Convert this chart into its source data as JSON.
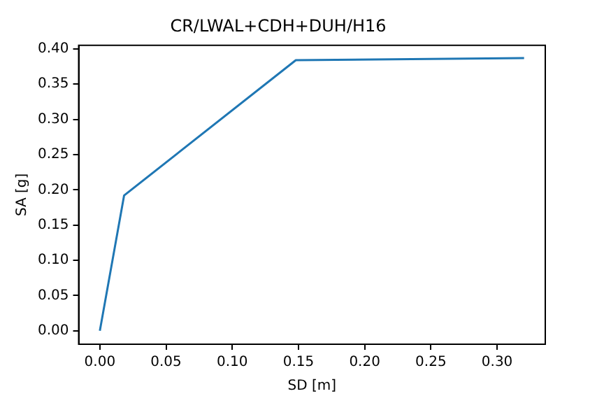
{
  "chart_data": {
    "type": "line",
    "title": "CR/LWAL+CDH+DUH/H16",
    "xlabel": "SD [m]",
    "ylabel": "SA [g]",
    "x": [
      0,
      0.0183,
      0.148,
      0.3204
    ],
    "series": [
      {
        "color": "#1f77b4",
        "values": [
          0,
          0.192,
          0.384,
          0.387
        ]
      }
    ],
    "xlim": [
      -0.016,
      0.3364
    ],
    "xticks": [
      {
        "value": 0,
        "label": "0.00"
      },
      {
        "value": 0.05,
        "label": "0.05"
      },
      {
        "value": 0.1,
        "label": "0.10"
      },
      {
        "value": 0.15,
        "label": "0.15"
      },
      {
        "value": 0.2,
        "label": "0.20"
      },
      {
        "value": 0.25,
        "label": "0.25"
      },
      {
        "value": 0.3,
        "label": "0.30"
      }
    ],
    "ylim": [
      -0.019,
      0.405
    ],
    "yticks": [
      {
        "value": 0,
        "label": "0.00"
      },
      {
        "value": 0.05,
        "label": "0.05"
      },
      {
        "value": 0.1,
        "label": "0.10"
      },
      {
        "value": 0.15,
        "label": "0.15"
      },
      {
        "value": 0.2,
        "label": "0.20"
      },
      {
        "value": 0.25,
        "label": "0.25"
      },
      {
        "value": 0.3,
        "label": "0.30"
      },
      {
        "value": 0.35,
        "label": "0.35"
      },
      {
        "value": 0.4,
        "label": "0.40"
      }
    ],
    "grid": false,
    "legend": false,
    "marker": "none",
    "line_style": "solid"
  }
}
